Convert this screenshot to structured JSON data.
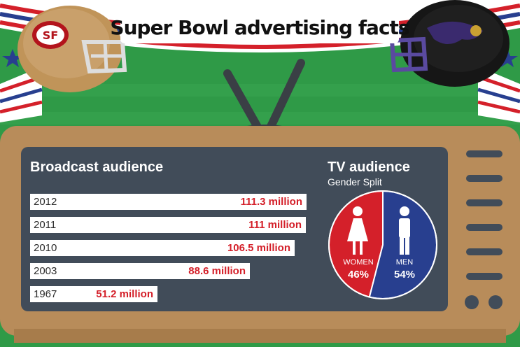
{
  "title": "Super Bowl advertising facts",
  "colors": {
    "field": "#2f9a47",
    "screen": "#414c59",
    "tv_body": "#b88c5a",
    "bar_value": "#d4202a",
    "women": "#d4202a",
    "men": "#283f8f"
  },
  "icons": [
    "49ers-helmet-icon",
    "ravens-helmet-icon",
    "tv-antenna-icon",
    "woman-icon",
    "man-icon"
  ],
  "chart_data": [
    {
      "type": "bar",
      "orientation": "horizontal",
      "title": "Broadcast audience",
      "categories": [
        "2012",
        "2011",
        "2010",
        "2003",
        "1967"
      ],
      "values": [
        111.3,
        111,
        106.5,
        88.6,
        51.2
      ],
      "value_labels": [
        "111.3 million",
        "111 million",
        "106.5 million",
        "88.6 million",
        "51.2 million"
      ],
      "unit": "million",
      "grid": false
    },
    {
      "type": "pie",
      "title": "TV audience",
      "subtitle": "Gender Split",
      "categories": [
        "WOMEN",
        "MEN"
      ],
      "values": [
        46,
        54
      ],
      "value_labels": [
        "46%",
        "54%"
      ]
    }
  ]
}
